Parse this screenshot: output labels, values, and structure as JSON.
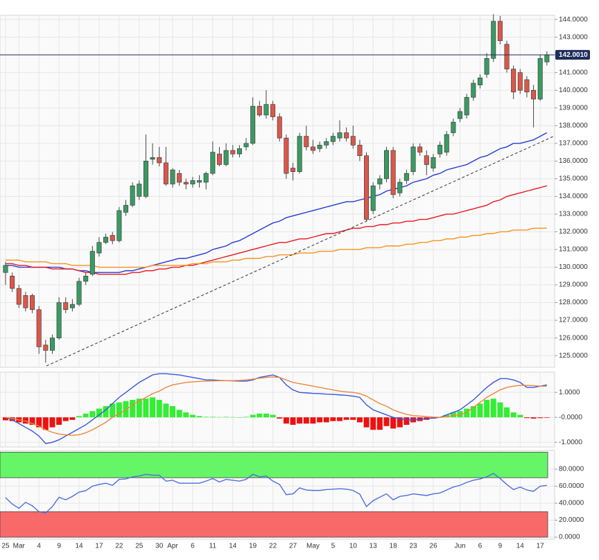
{
  "chart_data": [
    {
      "type": "candlestick",
      "categories": [
        "25",
        null,
        "Mar",
        null,
        null,
        "4",
        null,
        null,
        "9",
        null,
        null,
        "14",
        null,
        null,
        "17",
        null,
        null,
        "22",
        null,
        null,
        "25",
        null,
        null,
        "30",
        null,
        "Apr",
        null,
        null,
        "6",
        null,
        null,
        "11",
        null,
        null,
        "14",
        null,
        null,
        "19",
        null,
        null,
        "22",
        null,
        null,
        "27",
        null,
        null,
        "May",
        null,
        null,
        "5",
        null,
        null,
        "10",
        null,
        null,
        "13",
        null,
        null,
        "18",
        null,
        null,
        "23",
        null,
        null,
        "26",
        null,
        null,
        null,
        "Jun",
        null,
        null,
        "6",
        null,
        null,
        "9",
        null,
        null,
        "14",
        null,
        null,
        "17",
        null
      ],
      "open": [
        129.7,
        129.5,
        128.8,
        128.4,
        128.4,
        127.6,
        125.6,
        125.3,
        126.0,
        128.0,
        127.7,
        127.9,
        129.2,
        129.6,
        130.8,
        131.4,
        131.8,
        131.5,
        133.1,
        133.5,
        134.0,
        134.0,
        136.1,
        136.2,
        135.9,
        134.7,
        135.3,
        134.8,
        134.7,
        134.8,
        134.8,
        135.3,
        136.4,
        135.8,
        136.6,
        136.4,
        136.8,
        137.0,
        139.1,
        138.6,
        139.2,
        138.5,
        137.3,
        135.6,
        135.4,
        137.4,
        136.8,
        136.7,
        136.9,
        137.1,
        137.3,
        137.6,
        137.4,
        136.9,
        136.3,
        133.2,
        134.7,
        135.0,
        136.6,
        134.2,
        134.9,
        135.4,
        136.8,
        136.3,
        135.6,
        136.4,
        136.5,
        137.6,
        138.4,
        138.6,
        139.6,
        140.3,
        140.9,
        141.8,
        143.9,
        142.6,
        141.2,
        141.0,
        140.6,
        140.0,
        139.5,
        141.6
      ],
      "high": [
        130.3,
        129.7,
        129.0,
        128.6,
        128.5,
        127.8,
        125.9,
        126.2,
        128.3,
        128.3,
        128.2,
        129.4,
        129.7,
        131.2,
        131.7,
        131.9,
        132.0,
        133.4,
        133.8,
        134.8,
        134.9,
        137.5,
        137.0,
        136.8,
        136.8,
        135.6,
        135.5,
        135.0,
        135.1,
        135.2,
        135.4,
        137.1,
        136.8,
        137.0,
        136.9,
        136.9,
        137.3,
        139.6,
        139.4,
        140.0,
        139.4,
        138.7,
        137.5,
        135.9,
        137.6,
        138.0,
        137.2,
        137.1,
        137.3,
        137.6,
        138.3,
        137.9,
        138.0,
        137.2,
        136.5,
        134.8,
        135.2,
        136.8,
        136.8,
        135.0,
        135.5,
        137.0,
        137.0,
        136.6,
        136.4,
        137.1,
        137.7,
        138.4,
        139.0,
        139.8,
        140.6,
        140.9,
        142.1,
        144.3,
        144.2,
        142.8,
        141.4,
        141.2,
        140.8,
        140.3,
        142.0,
        142.2
      ],
      "low": [
        129.0,
        128.6,
        127.7,
        127.5,
        127.4,
        125.1,
        124.6,
        125.1,
        125.9,
        127.4,
        127.5,
        127.8,
        129.0,
        129.5,
        130.6,
        131.3,
        131.3,
        131.4,
        132.9,
        133.4,
        133.8,
        133.9,
        135.8,
        135.7,
        134.6,
        134.5,
        134.6,
        134.4,
        134.5,
        134.5,
        134.4,
        135.2,
        135.7,
        135.7,
        136.2,
        136.2,
        136.6,
        136.9,
        138.5,
        138.4,
        138.3,
        137.1,
        135.0,
        134.9,
        135.3,
        136.6,
        136.4,
        136.5,
        136.7,
        136.9,
        137.1,
        137.1,
        136.7,
        136.0,
        132.6,
        133.0,
        134.4,
        134.8,
        133.9,
        134.0,
        134.7,
        135.2,
        136.3,
        135.2,
        135.4,
        136.2,
        136.3,
        137.4,
        138.2,
        138.4,
        139.4,
        140.1,
        140.7,
        141.6,
        142.6,
        141.0,
        139.5,
        139.8,
        139.6,
        137.9,
        139.4,
        141.4
      ],
      "close": [
        130.1,
        128.8,
        127.9,
        127.7,
        127.6,
        125.5,
        125.3,
        126.0,
        128.0,
        127.6,
        127.9,
        129.2,
        129.5,
        130.9,
        131.4,
        131.7,
        131.5,
        133.2,
        133.5,
        134.6,
        134.7,
        136.0,
        136.2,
        135.9,
        134.7,
        135.5,
        134.8,
        134.7,
        134.9,
        134.9,
        135.3,
        136.5,
        135.8,
        136.6,
        136.4,
        136.7,
        137.0,
        139.1,
        138.6,
        139.2,
        138.5,
        137.3,
        135.3,
        135.4,
        137.4,
        136.8,
        136.6,
        136.9,
        137.1,
        137.4,
        137.6,
        137.3,
        136.9,
        136.3,
        132.7,
        134.6,
        135.0,
        136.6,
        134.1,
        134.8,
        135.3,
        136.8,
        136.5,
        135.8,
        136.2,
        136.9,
        137.5,
        138.2,
        138.8,
        139.6,
        140.4,
        140.7,
        141.8,
        143.9,
        142.8,
        141.2,
        139.9,
        140.0,
        139.9,
        139.5,
        141.8,
        142.0
      ],
      "up_color": "#3b9a62",
      "down_color": "#d9584a",
      "overlays": [
        {
          "color": "#2238d8",
          "values": [
            130.1,
            130.1,
            130.0,
            130.0,
            130.0,
            130.0,
            130.0,
            130.0,
            130.0,
            129.9,
            129.9,
            129.8,
            129.8,
            129.7,
            129.7,
            129.7,
            129.7,
            129.7,
            129.8,
            129.8,
            129.9,
            130.0,
            130.1,
            130.2,
            130.3,
            130.4,
            130.5,
            130.5,
            130.6,
            130.7,
            130.8,
            131.0,
            131.1,
            131.2,
            131.4,
            131.5,
            131.7,
            131.9,
            132.1,
            132.3,
            132.5,
            132.6,
            132.8,
            132.9,
            133.0,
            133.1,
            133.2,
            133.3,
            133.4,
            133.5,
            133.6,
            133.7,
            133.7,
            133.8,
            133.9,
            134.0,
            134.1,
            134.3,
            134.4,
            134.5,
            134.6,
            134.8,
            134.9,
            135.0,
            135.2,
            135.3,
            135.5,
            135.6,
            135.7,
            135.8,
            136.0,
            136.2,
            136.3,
            136.5,
            136.7,
            136.8,
            137.0,
            137.0,
            137.1,
            137.2,
            137.4,
            137.6
          ]
        },
        {
          "color": "#e8161b",
          "values": [
            130.2,
            130.2,
            130.1,
            130.1,
            130.0,
            130.0,
            130.0,
            129.9,
            129.9,
            129.9,
            129.9,
            129.8,
            129.7,
            129.7,
            129.6,
            129.6,
            129.6,
            129.6,
            129.6,
            129.7,
            129.7,
            129.8,
            129.8,
            129.9,
            129.9,
            130.0,
            130.0,
            130.1,
            130.1,
            130.2,
            130.3,
            130.4,
            130.5,
            130.6,
            130.7,
            130.8,
            130.9,
            131.0,
            131.1,
            131.2,
            131.3,
            131.4,
            131.4,
            131.5,
            131.6,
            131.6,
            131.7,
            131.8,
            131.9,
            131.9,
            132.0,
            132.1,
            132.2,
            132.2,
            132.3,
            132.3,
            132.4,
            132.4,
            132.5,
            132.5,
            132.6,
            132.6,
            132.7,
            132.7,
            132.8,
            132.9,
            133.0,
            133.0,
            133.1,
            133.2,
            133.3,
            133.4,
            133.5,
            133.7,
            133.8,
            134.0,
            134.1,
            134.2,
            134.3,
            134.4,
            134.5,
            134.6
          ]
        },
        {
          "color": "#f5921e",
          "values": [
            130.4,
            130.4,
            130.4,
            130.3,
            130.3,
            130.3,
            130.3,
            130.2,
            130.2,
            130.2,
            130.1,
            130.1,
            130.1,
            130.1,
            130.0,
            130.0,
            130.0,
            130.0,
            130.0,
            130.0,
            130.0,
            130.0,
            130.1,
            130.1,
            130.1,
            130.1,
            130.1,
            130.1,
            130.2,
            130.2,
            130.2,
            130.3,
            130.3,
            130.3,
            130.4,
            130.4,
            130.5,
            130.5,
            130.5,
            130.6,
            130.6,
            130.7,
            130.7,
            130.7,
            130.8,
            130.8,
            130.8,
            130.9,
            130.9,
            130.9,
            131.0,
            131.0,
            131.0,
            131.0,
            131.1,
            131.1,
            131.1,
            131.2,
            131.2,
            131.2,
            131.3,
            131.3,
            131.4,
            131.4,
            131.5,
            131.5,
            131.6,
            131.6,
            131.7,
            131.7,
            131.8,
            131.8,
            131.9,
            131.9,
            132.0,
            132.0,
            132.1,
            132.1,
            132.1,
            132.2,
            132.2,
            132.2
          ]
        }
      ],
      "last_price": {
        "value": 142.001,
        "label": "142.0010",
        "color": "#1f2d5c"
      },
      "ylim": [
        124.34,
        144.24
      ],
      "yticks": [
        {
          "value": 125,
          "label": "125.0000"
        },
        {
          "value": 126,
          "label": "126.0000"
        },
        {
          "value": 127,
          "label": "127.0000"
        },
        {
          "value": 128,
          "label": "128.0000"
        },
        {
          "value": 129,
          "label": "129.0000"
        },
        {
          "value": 130,
          "label": "130.0000"
        },
        {
          "value": 131,
          "label": "131.0000"
        },
        {
          "value": 132,
          "label": "132.0000"
        },
        {
          "value": 133,
          "label": "133.0000"
        },
        {
          "value": 134,
          "label": "134.0000"
        },
        {
          "value": 135,
          "label": "135.0000"
        },
        {
          "value": 136,
          "label": "136.0000"
        },
        {
          "value": 137,
          "label": "137.0000"
        },
        {
          "value": 138,
          "label": "138.0000"
        },
        {
          "value": 139,
          "label": "139.0000"
        },
        {
          "value": 140,
          "label": "140.0000"
        },
        {
          "value": 141,
          "label": "141.0000"
        },
        {
          "value": 142,
          "label": "142.0000"
        },
        {
          "value": 143,
          "label": "143.0000"
        },
        {
          "value": 144,
          "label": "144.0000"
        }
      ],
      "grid": true
    },
    {
      "type": "macd",
      "histogram": [
        -0.12,
        -0.15,
        -0.2,
        -0.25,
        -0.3,
        -0.4,
        -0.5,
        -0.4,
        -0.3,
        -0.15,
        -0.1,
        0.05,
        0.15,
        0.25,
        0.35,
        0.45,
        0.55,
        0.6,
        0.65,
        0.7,
        0.75,
        0.75,
        0.8,
        0.7,
        0.55,
        0.45,
        0.3,
        0.2,
        0.1,
        0.05,
        0.02,
        0.02,
        0.01,
        0.02,
        0.01,
        0.0,
        0.02,
        0.1,
        0.15,
        0.15,
        0.1,
        -0.05,
        -0.25,
        -0.3,
        -0.25,
        -0.25,
        -0.25,
        -0.2,
        -0.2,
        -0.15,
        -0.15,
        -0.1,
        -0.1,
        -0.2,
        -0.4,
        -0.5,
        -0.5,
        -0.35,
        -0.45,
        -0.4,
        -0.3,
        -0.2,
        -0.15,
        -0.1,
        -0.05,
        0.0,
        0.1,
        0.2,
        0.25,
        0.35,
        0.45,
        0.55,
        0.7,
        0.75,
        0.6,
        0.4,
        0.2,
        0.1,
        -0.03,
        -0.05,
        -0.03,
        -0.02
      ],
      "hist_up_color": "#33ee33",
      "hist_down_color": "#ee1111",
      "series": [
        {
          "color": "#3656e0",
          "values": [
            0.0,
            -0.1,
            -0.25,
            -0.4,
            -0.55,
            -0.75,
            -1.05,
            -1.0,
            -0.9,
            -0.75,
            -0.6,
            -0.45,
            -0.3,
            -0.1,
            0.1,
            0.3,
            0.55,
            0.8,
            1.0,
            1.2,
            1.4,
            1.55,
            1.7,
            1.75,
            1.75,
            1.72,
            1.7,
            1.65,
            1.6,
            1.55,
            1.5,
            1.5,
            1.48,
            1.47,
            1.46,
            1.45,
            1.45,
            1.5,
            1.6,
            1.65,
            1.7,
            1.6,
            1.3,
            1.1,
            1.0,
            0.98,
            0.96,
            0.95,
            0.93,
            0.92,
            0.9,
            0.88,
            0.85,
            0.8,
            0.5,
            0.3,
            0.2,
            0.1,
            0.0,
            -0.05,
            -0.1,
            -0.1,
            -0.08,
            -0.05,
            -0.03,
            0.0,
            0.1,
            0.2,
            0.3,
            0.5,
            0.7,
            0.95,
            1.2,
            1.4,
            1.55,
            1.55,
            1.5,
            1.4,
            1.2,
            1.2,
            1.25,
            1.3
          ]
        },
        {
          "color": "#f0843a",
          "values": [
            0.0,
            -0.05,
            -0.1,
            -0.15,
            -0.25,
            -0.35,
            -0.5,
            -0.6,
            -0.67,
            -0.7,
            -0.72,
            -0.7,
            -0.62,
            -0.5,
            -0.35,
            -0.2,
            0.0,
            0.15,
            0.3,
            0.5,
            0.65,
            0.8,
            0.95,
            1.05,
            1.2,
            1.3,
            1.35,
            1.4,
            1.42,
            1.44,
            1.45,
            1.46,
            1.47,
            1.47,
            1.47,
            1.48,
            1.5,
            1.53,
            1.57,
            1.6,
            1.62,
            1.6,
            1.5,
            1.4,
            1.35,
            1.3,
            1.25,
            1.2,
            1.15,
            1.1,
            1.05,
            1.02,
            1.0,
            0.95,
            0.85,
            0.7,
            0.55,
            0.45,
            0.3,
            0.2,
            0.12,
            0.07,
            0.05,
            0.03,
            0.01,
            0.0,
            0.03,
            0.07,
            0.1,
            0.2,
            0.4,
            0.6,
            0.8,
            0.95,
            1.1,
            1.2,
            1.25,
            1.28,
            1.28,
            1.27,
            1.25,
            1.25
          ]
        }
      ],
      "ylim": [
        -1.19,
        1.81
      ],
      "yticks": [
        {
          "value": 1,
          "label": "1.0000"
        },
        {
          "value": 0,
          "label": "-0.0000"
        },
        {
          "value": -1,
          "label": "-1.0000"
        }
      ],
      "grid": true
    },
    {
      "type": "rsi",
      "series": [
        {
          "color": "#4a6ee0",
          "values": [
            46.5,
            39,
            34,
            41,
            37,
            30,
            28.5,
            36,
            47,
            44,
            48,
            53,
            54.7,
            60,
            62,
            63.5,
            61,
            68,
            68.5,
            71,
            72,
            74,
            73,
            73,
            66,
            67,
            63.5,
            63.5,
            63.5,
            63.5,
            66,
            69,
            65,
            68,
            67,
            66,
            68,
            74,
            71,
            72,
            66,
            62,
            50,
            51,
            58,
            55.5,
            55,
            55,
            56,
            56.5,
            57,
            56.5,
            55,
            50.6,
            36,
            43,
            47,
            51,
            44,
            48,
            49,
            51,
            50,
            49,
            51,
            52,
            55.5,
            59,
            61,
            64.5,
            67,
            68.5,
            71,
            75,
            69,
            62,
            56,
            59,
            55.5,
            54,
            60,
            61
          ]
        }
      ],
      "zones": [
        {
          "from": 70,
          "to": 100,
          "color": "#66f566"
        },
        {
          "from": 0,
          "to": 30,
          "color": "#f86a6a"
        }
      ],
      "ylim": [
        -2.4,
        102
      ],
      "yticks": [
        {
          "value": 0,
          "label": "0.0000"
        },
        {
          "value": 20,
          "label": "20.0000"
        },
        {
          "value": 40,
          "label": "40.0000"
        },
        {
          "value": 60,
          "label": "60.0000"
        },
        {
          "value": 80,
          "label": "80.0000"
        }
      ],
      "grid": true
    }
  ]
}
